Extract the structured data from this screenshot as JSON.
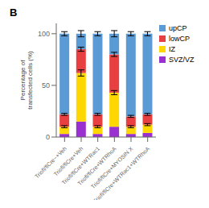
{
  "chart_data": {
    "type": "bar",
    "title": "B",
    "ylabel": "Percentage of\ntransfected cells (%)",
    "categories": [
      "Triofl/flCre−+Veh",
      "Triofl/flCre+Veh",
      "Triofl/flCre+WTRac1",
      "Triofl/flCre+WTRhoA",
      "Triofl/flCre+MYOSIN X",
      "Triofl/flCre+WTRac1+WTRhoA"
    ],
    "series": [
      {
        "name": "upCP",
        "color": "#5b9bd5",
        "values": [
          78,
          15,
          78,
          20,
          80,
          78
        ],
        "errors": [
          2,
          3,
          2,
          3,
          2,
          2
        ]
      },
      {
        "name": "lowCP",
        "color": "#e84040",
        "values": [
          12,
          23,
          12,
          37,
          10,
          10
        ],
        "errors": [
          1,
          2,
          1,
          2,
          1,
          1
        ]
      },
      {
        "name": "IZ",
        "color": "#ffd700",
        "values": [
          7,
          47,
          7,
          33,
          7,
          8
        ],
        "errors": [
          1,
          3,
          1,
          2,
          1,
          1
        ]
      },
      {
        "name": "SVZ/VZ",
        "color": "#9b30d0",
        "values": [
          3,
          15,
          3,
          10,
          3,
          4
        ]
      }
    ],
    "ylim": [
      0,
      110
    ],
    "yticks": [
      0,
      50,
      100
    ],
    "stacked": true,
    "grid": false,
    "legend": "right"
  }
}
